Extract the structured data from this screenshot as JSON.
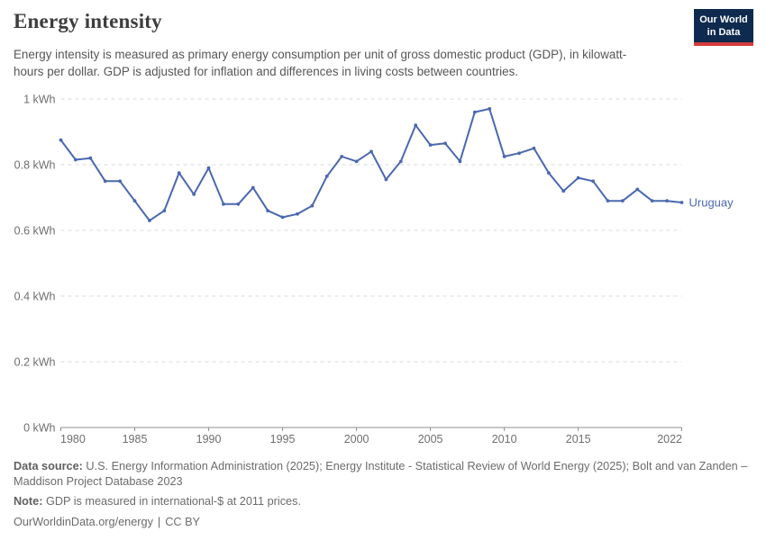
{
  "header": {
    "title": "Energy intensity",
    "logo": {
      "line1": "Our World",
      "line2": "in Data"
    }
  },
  "subtitle": "Energy intensity is measured as primary energy consumption per unit of gross domestic product (GDP), in kilowatt-hours per dollar. GDP is adjusted for inflation and differences in living costs between countries.",
  "chart_data": {
    "type": "line",
    "title": "Energy intensity",
    "xlabel": "",
    "ylabel": "kWh per dollar",
    "xlim": [
      1980,
      2022
    ],
    "ylim": [
      0,
      1
    ],
    "grid": "horizontal-dashed",
    "legend_position": "end-of-line-label",
    "x_ticks": [
      {
        "v": 1980,
        "label": "1980",
        "anchor": "start"
      },
      {
        "v": 1985,
        "label": "1985",
        "anchor": "middle"
      },
      {
        "v": 1990,
        "label": "1990",
        "anchor": "middle"
      },
      {
        "v": 1995,
        "label": "1995",
        "anchor": "middle"
      },
      {
        "v": 2000,
        "label": "2000",
        "anchor": "middle"
      },
      {
        "v": 2005,
        "label": "2005",
        "anchor": "middle"
      },
      {
        "v": 2010,
        "label": "2010",
        "anchor": "middle"
      },
      {
        "v": 2015,
        "label": "2015",
        "anchor": "middle"
      },
      {
        "v": 2022,
        "label": "2022",
        "anchor": "end"
      }
    ],
    "y_ticks": [
      {
        "v": 0,
        "label": "0 kWh"
      },
      {
        "v": 0.2,
        "label": "0.2 kWh"
      },
      {
        "v": 0.4,
        "label": "0.4 kWh"
      },
      {
        "v": 0.6,
        "label": "0.6 kWh"
      },
      {
        "v": 0.8,
        "label": "0.8 kWh"
      },
      {
        "v": 1,
        "label": "1 kWh"
      }
    ],
    "x": [
      1980,
      1981,
      1982,
      1983,
      1984,
      1985,
      1986,
      1987,
      1988,
      1989,
      1990,
      1991,
      1992,
      1993,
      1994,
      1995,
      1996,
      1997,
      1998,
      1999,
      2000,
      2001,
      2002,
      2003,
      2004,
      2005,
      2006,
      2007,
      2008,
      2009,
      2010,
      2011,
      2012,
      2013,
      2014,
      2015,
      2016,
      2017,
      2018,
      2019,
      2020,
      2021,
      2022
    ],
    "series": [
      {
        "name": "Uruguay",
        "color": "#4a68af",
        "values": [
          0.875,
          0.815,
          0.82,
          0.75,
          0.75,
          0.69,
          0.63,
          0.66,
          0.775,
          0.71,
          0.79,
          0.68,
          0.68,
          0.73,
          0.66,
          0.64,
          0.65,
          0.675,
          0.765,
          0.825,
          0.81,
          0.84,
          0.755,
          0.81,
          0.92,
          0.86,
          0.865,
          0.81,
          0.96,
          0.97,
          0.825,
          0.835,
          0.85,
          0.775,
          0.72,
          0.76,
          0.75,
          0.69,
          0.69,
          0.725,
          0.69,
          0.69,
          0.685
        ]
      }
    ]
  },
  "footer": {
    "data_source_label": "Data source:",
    "data_source": "U.S. Energy Information Administration (2025); Energy Institute - Statistical Review of World Energy (2025); Bolt and van Zanden – Maddison Project Database 2023",
    "note_label": "Note:",
    "note": "GDP is measured in international-$ at 2011 prices.",
    "link": "OurWorldinData.org/energy",
    "separator": "|",
    "license": "CC BY"
  },
  "colors": {
    "accent_blue": "#4a68af",
    "gridline": "#dadada",
    "axis": "#8f8f8f",
    "tick_text": "#6e6e6e",
    "logo_bg": "#0e2a4e",
    "logo_stripe": "#d63c3c"
  }
}
